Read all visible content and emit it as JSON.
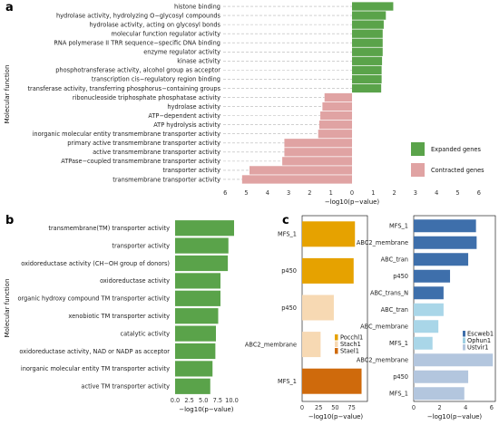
{
  "panels": {
    "a": "a",
    "b": "b",
    "c": "c"
  },
  "colors": {
    "expanded": "#5aa34a",
    "contracted": "#e0a3a3",
    "panel_b": "#5aa34a",
    "species": {
      "Pocchl1": "#e6a200",
      "Stach1": "#f7d9b3",
      "Stael1": "#cf6a0c"
    },
    "species_right": {
      "Escweb1": "#3e6fab",
      "Ophun1": "#9fd0e3",
      "Ustvir1": "#b3c6de"
    },
    "label_red": "#ff2020",
    "label_blue": "#1f2fb0",
    "label_green": "#2bd12b"
  },
  "chart_data": [
    {
      "id": "a",
      "type": "bar",
      "orientation": "horizontal",
      "ylabel": "Molecular function",
      "xlabel": "−log10(p−value)",
      "xticks_left": [
        "6",
        "5",
        "4",
        "3",
        "2",
        "1",
        "0"
      ],
      "xticks_right": [
        "1",
        "2",
        "3",
        "4",
        "5",
        "6"
      ],
      "xlim": [
        -6,
        6
      ],
      "legend": [
        "Expanded genes",
        "Contracted genes"
      ],
      "legend_position": "right",
      "categories": [
        "histone binding",
        "hydrolase activity, hydrolyzing O−glycosyl compounds",
        "hydrolase activity, acting on glycosyl bonds",
        "molecular function regulator activity",
        "RNA polymerase II TRR sequence−specific DNA binding",
        "enzyme regulator activity",
        "kinase activity",
        "phosphotransferase activity, alcohol group as acceptor",
        "transcription cis−regulatory region binding",
        "transferase activity, transferring phosphorus−containing groups",
        "ribonucleoside triphosphate phosphatase activity",
        "hydrolase activity",
        "ATP−dependent activity",
        "ATP hydrolysis activity",
        "inorganic molecular entity transmembrane transporter activity",
        "primary active transmembrane transporter activity",
        "active transmembrane transporter activity",
        "ATPase−coupled transmembrane transporter activity",
        "transporter activity",
        "transmembrane transporter activity"
      ],
      "values": [
        1.95,
        1.6,
        1.5,
        1.45,
        1.45,
        1.45,
        1.42,
        1.4,
        1.4,
        1.38,
        -1.3,
        -1.4,
        -1.5,
        -1.55,
        -1.6,
        -3.2,
        -3.2,
        -3.3,
        -4.85,
        -5.2
      ],
      "series_of": [
        "Expanded genes",
        "Expanded genes",
        "Expanded genes",
        "Expanded genes",
        "Expanded genes",
        "Expanded genes",
        "Expanded genes",
        "Expanded genes",
        "Expanded genes",
        "Expanded genes",
        "Contracted genes",
        "Contracted genes",
        "Contracted genes",
        "Contracted genes",
        "Contracted genes",
        "Contracted genes",
        "Contracted genes",
        "Contracted genes",
        "Contracted genes",
        "Contracted genes"
      ]
    },
    {
      "id": "b",
      "type": "bar",
      "orientation": "horizontal",
      "ylabel": "Molecular function",
      "xlabel": "−log10(p−value)",
      "xlim": [
        0,
        11
      ],
      "xticks": [
        "0.0",
        "2.5",
        "5.0",
        "7.5",
        "10.0"
      ],
      "categories": [
        "transmembrane(TM) transporter activity",
        "transporter activity",
        "oxidoreductase activity (CH−OH group of donors)",
        "oxidoreductase activity",
        "organic hydroxy compound TM transporter activity",
        "xenobiotic TM transporter activity",
        "catalytic activity",
        "oxidoreductase activity, NAD or NADP as acceptor",
        "inorganic molecular entity TM transporter activity",
        "active TM transporter activity"
      ],
      "values": [
        10.4,
        9.4,
        9.3,
        8.0,
        8.0,
        7.6,
        7.2,
        7.1,
        6.6,
        6.2
      ]
    },
    {
      "id": "c-left",
      "type": "bar",
      "orientation": "horizontal",
      "xlabel": "−log10(p−value)",
      "xlim": [
        0,
        92
      ],
      "xticks": [
        "0",
        "25",
        "50",
        "75"
      ],
      "legend": [
        "Pocchl1",
        "Stach1",
        "Stael1"
      ],
      "legend_position": "inside-right",
      "categories": [
        "MFS_1",
        "p450",
        "p450",
        "ABC2_membrane",
        "MFS_1"
      ],
      "label_colors": [
        "red",
        "green",
        "green",
        "blue",
        "red"
      ],
      "values": [
        80,
        78,
        48,
        28,
        90
      ],
      "series_of": [
        "Pocchl1",
        "Pocchl1",
        "Stach1",
        "Stach1",
        "Stael1"
      ]
    },
    {
      "id": "c-right",
      "type": "bar",
      "orientation": "horizontal",
      "xlabel": "−log10(p−value)",
      "xlim": [
        0,
        6.3
      ],
      "xticks": [
        "0",
        "2",
        "4",
        "6"
      ],
      "legend": [
        "Escweb1",
        "Ophun1",
        "Ustvir1"
      ],
      "legend_position": "inside-right",
      "categories": [
        "MFS_1",
        "ABC2_membrane",
        "ABC_tran",
        "p450",
        "ABC_trans_N",
        "ABC_tran",
        "ABC_membrane",
        "MFS_1",
        "ABC2_membrane",
        "p450",
        "MFS_1"
      ],
      "label_colors": [
        "red",
        "blue",
        "blue",
        "green",
        "blue",
        "blue",
        "blue",
        "red",
        "blue",
        "green",
        "red"
      ],
      "values": [
        4.8,
        4.85,
        4.2,
        2.8,
        2.3,
        2.3,
        1.9,
        1.45,
        6.1,
        4.2,
        3.9
      ],
      "series_of": [
        "Escweb1",
        "Escweb1",
        "Escweb1",
        "Escweb1",
        "Escweb1",
        "Ophun1",
        "Ophun1",
        "Ophun1",
        "Ustvir1",
        "Ustvir1",
        "Ustvir1"
      ]
    }
  ]
}
